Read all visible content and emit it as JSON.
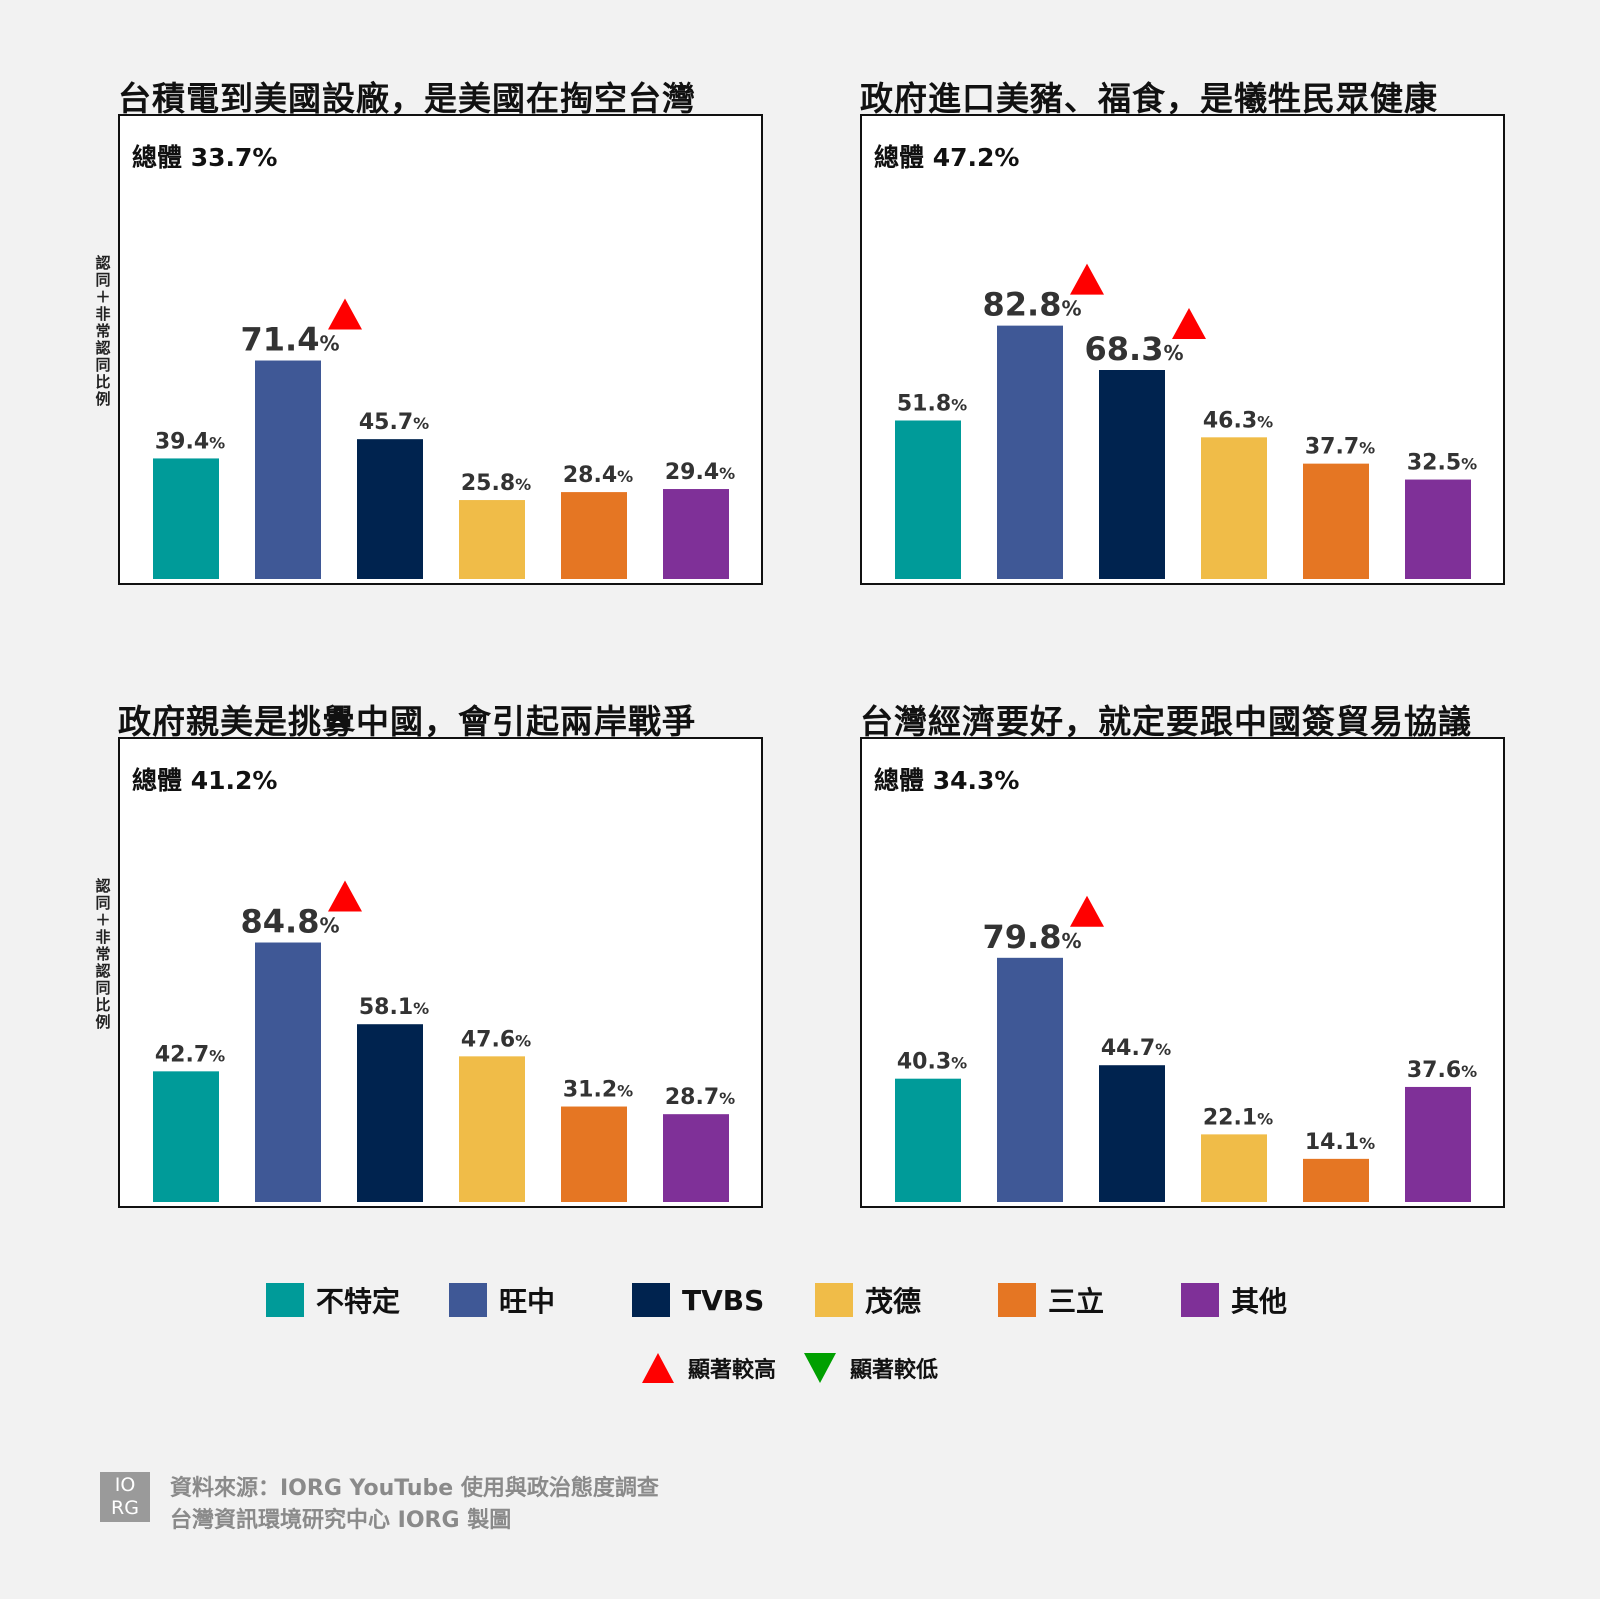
{
  "y_axis_label": "認同＋非常認同 比例",
  "colors": {
    "不特定": "#009b99",
    "旺中": "#3f5896",
    "TVBS": "#00234f",
    "茂德": "#f0bc48",
    "三立": "#e57623",
    "其他": "#7f3098",
    "sig_high": "#ff0000",
    "sig_low": "#00a000"
  },
  "legend": {
    "items": [
      {
        "label": "不特定",
        "color": "#009b99"
      },
      {
        "label": "旺中",
        "color": "#3f5896"
      },
      {
        "label": "TVBS",
        "color": "#00234f"
      },
      {
        "label": "茂德",
        "color": "#f0bc48"
      },
      {
        "label": "三立",
        "color": "#e57623"
      },
      {
        "label": "其他",
        "color": "#7f3098"
      }
    ],
    "sig_high": "顯著較高",
    "sig_low": "顯著較低"
  },
  "chart_data": [
    {
      "type": "bar",
      "title": "台積電到美國設廠，是美國在掏空台灣",
      "overall": "總體 33.7%",
      "categories": [
        "不特定",
        "旺中",
        "TVBS",
        "茂德",
        "三立",
        "其他"
      ],
      "values": [
        39.4,
        71.4,
        45.7,
        25.8,
        28.4,
        29.4
      ],
      "labels": [
        "39.4",
        "71.4",
        "45.7",
        "25.8",
        "28.4",
        "29.4"
      ],
      "significant_high": [
        1
      ],
      "emphasized": [
        1
      ],
      "ylim": [
        0,
        100
      ]
    },
    {
      "type": "bar",
      "title": "政府進口美豬、福食，是犧牲民眾健康",
      "overall": "總體 47.2%",
      "categories": [
        "不特定",
        "旺中",
        "TVBS",
        "茂德",
        "三立",
        "其他"
      ],
      "values": [
        51.8,
        82.8,
        68.3,
        46.3,
        37.7,
        32.5
      ],
      "labels": [
        "51.8",
        "82.8",
        "68.3",
        "46.3",
        "37.7",
        "32.5"
      ],
      "significant_high": [
        1,
        2
      ],
      "emphasized": [
        1,
        2
      ],
      "ylim": [
        0,
        100
      ]
    },
    {
      "type": "bar",
      "title": "政府親美是挑釁中國，會引起兩岸戰爭",
      "overall": "總體 41.2%",
      "categories": [
        "不特定",
        "旺中",
        "TVBS",
        "茂德",
        "三立",
        "其他"
      ],
      "values": [
        42.7,
        84.8,
        58.1,
        47.6,
        31.2,
        28.7
      ],
      "labels": [
        "42.7",
        "84.8",
        "58.1",
        "47.6",
        "31.2",
        "28.7"
      ],
      "significant_high": [
        1
      ],
      "emphasized": [
        1
      ],
      "ylim": [
        0,
        100
      ]
    },
    {
      "type": "bar",
      "title": "台灣經濟要好，就定要跟中國簽貿易協議",
      "overall": "總體 34.3%",
      "categories": [
        "不特定",
        "旺中",
        "TVBS",
        "茂德",
        "三立",
        "其他"
      ],
      "values": [
        40.3,
        79.8,
        44.7,
        22.1,
        14.1,
        37.6
      ],
      "labels": [
        "40.3",
        "79.8",
        "44.7",
        "22.1",
        "14.1",
        "37.6"
      ],
      "significant_high": [
        1
      ],
      "emphasized": [
        1
      ],
      "ylim": [
        0,
        100
      ]
    }
  ],
  "footer": {
    "logo_top": "IO",
    "logo_bottom": "RG",
    "source": "資料來源：IORG YouTube 使用與政治態度調查",
    "credit": "台灣資訊環境研究中心 IORG 製圖"
  }
}
